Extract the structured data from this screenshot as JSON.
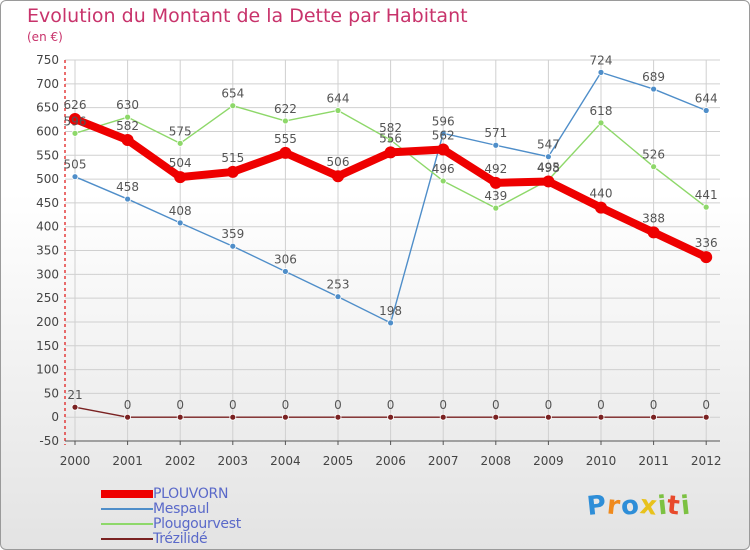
{
  "title": "Evolution du Montant de la Dette par Habitant",
  "subtitle": "(en €)",
  "logo": {
    "text": "Proxiti",
    "letters": [
      {
        "ch": "P",
        "color": "#2e8ed8"
      },
      {
        "ch": "r",
        "color": "#f08a1c"
      },
      {
        "ch": "o",
        "color": "#2e8ed8"
      },
      {
        "ch": "x",
        "color": "#e8c21c"
      },
      {
        "ch": "i",
        "color": "#7cc142"
      },
      {
        "ch": "t",
        "color": "#e84a2c"
      },
      {
        "ch": "i",
        "color": "#7cc142"
      }
    ]
  },
  "chart_data": {
    "type": "line",
    "title": "Evolution du Montant de la Dette par Habitant",
    "subtitle": "(en €)",
    "x": [
      "2000",
      "2001",
      "2002",
      "2003",
      "2004",
      "2005",
      "2006",
      "2007",
      "2008",
      "2009",
      "2010",
      "2011",
      "2012"
    ],
    "ylim": [
      -50,
      750
    ],
    "yticks": [
      -50,
      0,
      50,
      100,
      150,
      200,
      250,
      300,
      350,
      400,
      450,
      500,
      550,
      600,
      650,
      700,
      750
    ],
    "grid": true,
    "legend_position": "bottom-left",
    "series": [
      {
        "name": "PLOUVORN",
        "color": "#ee0000",
        "emphasis": true,
        "values": [
          626,
          582,
          504,
          515,
          555,
          506,
          556,
          562,
          492,
          495,
          440,
          388,
          336
        ],
        "labels": [
          "626",
          "582",
          "504",
          "515",
          "555",
          "506",
          "556",
          "562",
          "492",
          "495",
          "440",
          "388",
          "336"
        ]
      },
      {
        "name": "Mespaul",
        "color": "#4f8ec9",
        "values": [
          505,
          458,
          408,
          359,
          306,
          253,
          198,
          596,
          571,
          547,
          724,
          689,
          644
        ],
        "labels": [
          "505",
          "458",
          "408",
          "359",
          "306",
          "253",
          "198",
          "596",
          "571",
          "547",
          "724",
          "689",
          "644"
        ]
      },
      {
        "name": "Plougourvest",
        "color": "#8ed86a",
        "values": [
          596,
          630,
          575,
          654,
          622,
          644,
          582,
          496,
          439,
          498,
          618,
          526,
          441
        ],
        "labels": [
          "596",
          "630",
          "575",
          "654",
          "622",
          "644",
          "582",
          "496",
          "439",
          "498",
          "618",
          "526",
          "441"
        ]
      },
      {
        "name": "Trézilidé",
        "color": "#7a2222",
        "values": [
          21,
          0,
          0,
          0,
          0,
          0,
          0,
          0,
          0,
          0,
          0,
          0,
          0
        ],
        "labels": [
          "21",
          "0",
          "0",
          "0",
          "0",
          "0",
          "0",
          "0",
          "0",
          "0",
          "0",
          "0",
          "0"
        ]
      }
    ]
  }
}
